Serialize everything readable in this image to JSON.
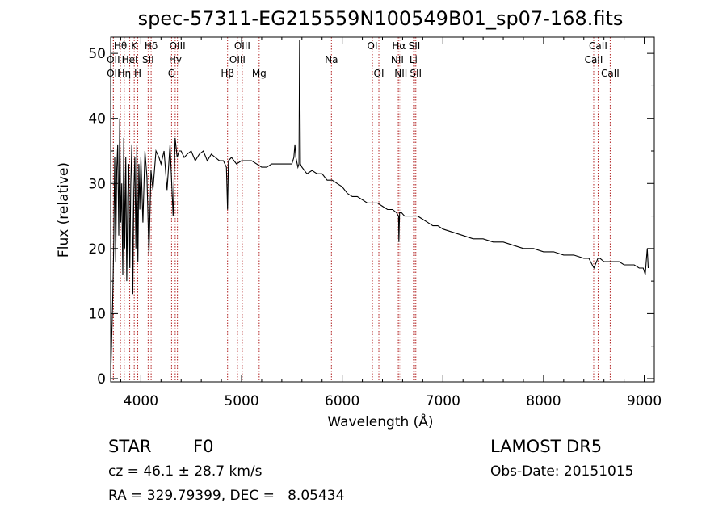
{
  "chart_data": {
    "type": "line",
    "title": "spec-57311-EG215559N100549B01_sp07-168.fits",
    "xlabel": "Wavelength (Å)",
    "ylabel": "Flux (relative)",
    "xlim": [
      3700,
      9100
    ],
    "ylim": [
      -0.5,
      52.5
    ],
    "x_ticks": [
      4000,
      5000,
      6000,
      7000,
      8000,
      9000
    ],
    "y_ticks": [
      0,
      10,
      20,
      30,
      40,
      50
    ],
    "grid": false,
    "legend": "none",
    "series": [
      {
        "x": [
          3700,
          3720,
          3730,
          3740,
          3750,
          3760,
          3770,
          3780,
          3790,
          3800,
          3810,
          3820,
          3830,
          3840,
          3850,
          3860,
          3870,
          3880,
          3890,
          3900,
          3910,
          3920,
          3930,
          3940,
          3950,
          3960,
          3970,
          3980,
          3990,
          4000,
          4020,
          4040,
          4060,
          4080,
          4100,
          4120,
          4150,
          4180,
          4200,
          4230,
          4260,
          4290,
          4320,
          4340,
          4360,
          4380,
          4400,
          4430,
          4460,
          4500,
          4540,
          4580,
          4620,
          4660,
          4700,
          4740,
          4780,
          4820,
          4850,
          4861,
          4870,
          4900,
          4950,
          5000,
          5050,
          5100,
          5150,
          5200,
          5250,
          5300,
          5350,
          5400,
          5450,
          5500,
          5520,
          5530,
          5540,
          5560,
          5570,
          5577,
          5585,
          5600,
          5650,
          5700,
          5750,
          5800,
          5850,
          5900,
          5950,
          6000,
          6050,
          6100,
          6150,
          6200,
          6250,
          6300,
          6350,
          6400,
          6450,
          6500,
          6540,
          6560,
          6563,
          6570,
          6590,
          6620,
          6650,
          6700,
          6750,
          6800,
          6850,
          6900,
          6950,
          7000,
          7100,
          7200,
          7300,
          7400,
          7500,
          7600,
          7700,
          7800,
          7900,
          8000,
          8100,
          8200,
          8300,
          8400,
          8450,
          8500,
          8540,
          8560,
          8600,
          8650,
          8700,
          8750,
          8800,
          8850,
          8900,
          8950,
          8990,
          9010,
          9020,
          9030,
          9040
        ],
        "values": [
          0,
          12,
          20,
          34,
          18,
          32,
          36,
          22,
          40,
          24,
          30,
          16,
          37,
          20,
          34,
          15,
          28,
          33,
          17,
          30,
          36,
          13,
          29,
          34,
          20,
          36,
          18,
          33,
          26,
          34,
          24,
          35,
          31,
          19,
          32,
          29,
          35,
          34,
          33,
          35,
          29,
          36,
          25,
          37,
          34,
          35,
          35,
          34,
          34.5,
          35,
          33.5,
          34.5,
          35,
          33.5,
          34.5,
          34,
          33.5,
          33.5,
          32.5,
          26,
          33.5,
          34,
          33,
          33.5,
          33.5,
          33.5,
          33,
          32.5,
          32.5,
          33,
          33,
          33,
          33,
          33,
          34,
          36,
          34,
          32.5,
          33,
          52,
          33,
          32.5,
          31.5,
          32,
          31.5,
          31.5,
          30.5,
          30.5,
          30,
          29.5,
          28.5,
          28,
          28,
          27.5,
          27,
          27,
          27,
          26.5,
          26,
          26,
          25.5,
          25,
          21,
          25.5,
          25.5,
          25,
          25,
          25,
          25,
          24.5,
          24,
          23.5,
          23.5,
          23,
          22.5,
          22,
          21.5,
          21.5,
          21,
          21,
          20.5,
          20,
          20,
          19.5,
          19.5,
          19,
          19,
          18.5,
          18.5,
          17,
          18.5,
          18.5,
          18,
          18,
          18,
          18,
          17.5,
          17.5,
          17.5,
          17,
          17,
          16,
          18,
          20,
          17
        ]
      }
    ],
    "spectral_lines": [
      {
        "label": "Hθ",
        "x": 3797,
        "row": 1
      },
      {
        "label": "OII",
        "x": 3727,
        "row": 2
      },
      {
        "label": "OII",
        "x": 3727,
        "row": 3
      },
      {
        "label": "Hη",
        "x": 3835,
        "row": 3
      },
      {
        "label": "HeI",
        "x": 3889,
        "row": 2
      },
      {
        "label": "K",
        "x": 3934,
        "row": 1
      },
      {
        "label": "H",
        "x": 3969,
        "row": 3
      },
      {
        "label": "Hδ",
        "x": 4102,
        "row": 1
      },
      {
        "label": "SII",
        "x": 4072,
        "row": 2
      },
      {
        "label": "OIII",
        "x": 4363,
        "row": 1
      },
      {
        "label": "Hγ",
        "x": 4341,
        "row": 2
      },
      {
        "label": "G",
        "x": 4305,
        "row": 3
      },
      {
        "label": "Hβ",
        "x": 4861,
        "row": 3
      },
      {
        "label": "OIII",
        "x": 5007,
        "row": 1
      },
      {
        "label": "OIII",
        "x": 4959,
        "row": 2
      },
      {
        "label": "Mg",
        "x": 5175,
        "row": 3
      },
      {
        "label": "Na",
        "x": 5893,
        "row": 2
      },
      {
        "label": "OI",
        "x": 6300,
        "row": 1
      },
      {
        "label": "OI",
        "x": 6364,
        "row": 3
      },
      {
        "label": "Hα",
        "x": 6563,
        "row": 1
      },
      {
        "label": "NII",
        "x": 6548,
        "row": 2
      },
      {
        "label": "NII",
        "x": 6583,
        "row": 3
      },
      {
        "label": "SII",
        "x": 6717,
        "row": 1
      },
      {
        "label": "Li",
        "x": 6708,
        "row": 2
      },
      {
        "label": "SII",
        "x": 6731,
        "row": 3
      },
      {
        "label": "CaII",
        "x": 8542,
        "row": 1
      },
      {
        "label": "CaII",
        "x": 8498,
        "row": 2
      },
      {
        "label": "CaII",
        "x": 8662,
        "row": 3
      }
    ]
  },
  "info": {
    "class": "STAR",
    "subclass": "F0",
    "survey": "LAMOST DR5",
    "velocity": "cz = 46.1 ± 28.7 km/s",
    "obs_date": "Obs-Date: 20151015",
    "coords": "RA = 329.79399, DEC =   8.05434"
  }
}
